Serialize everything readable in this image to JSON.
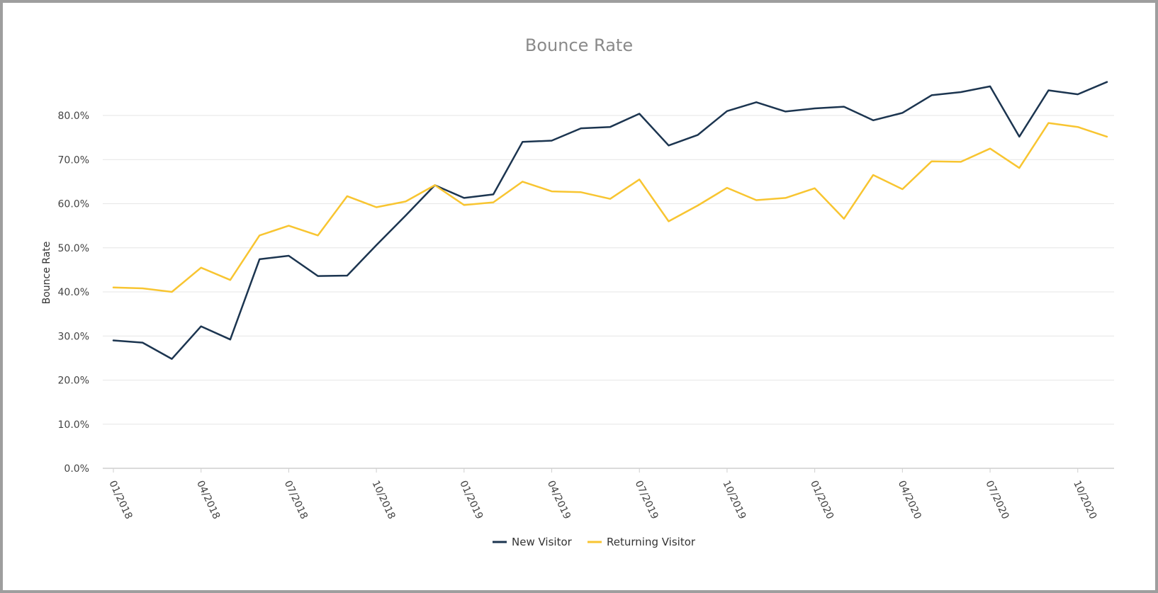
{
  "chart_data": {
    "type": "line",
    "title": "Bounce Rate",
    "xlabel": "",
    "ylabel": "Bounce Rate",
    "ylim": [
      0,
      80
    ],
    "yticks": [
      "0.0%",
      "10.0%",
      "20.0%",
      "30.0%",
      "40.0%",
      "50.0%",
      "60.0%",
      "70.0%",
      "80.0%"
    ],
    "x": [
      "01/2018",
      "02/2018",
      "03/2018",
      "04/2018",
      "05/2018",
      "06/2018",
      "07/2018",
      "08/2018",
      "09/2018",
      "10/2018",
      "11/2018",
      "12/2018",
      "01/2019",
      "02/2019",
      "03/2019",
      "04/2019",
      "05/2019",
      "06/2019",
      "07/2019",
      "08/2019",
      "09/2019",
      "10/2019",
      "11/2019",
      "12/2019",
      "01/2020",
      "02/2020",
      "03/2020",
      "04/2020",
      "05/2020",
      "06/2020",
      "07/2020",
      "08/2020",
      "09/2020",
      "10/2020",
      "11/2020"
    ],
    "xtick_labels": [
      "01/2018",
      "04/2018",
      "07/2018",
      "10/2018",
      "01/2019",
      "04/2019",
      "07/2019",
      "10/2019",
      "01/2020",
      "04/2020",
      "07/2020",
      "10/2020"
    ],
    "grid": true,
    "legend": "bottom-center",
    "series": [
      {
        "name": "New Visitor",
        "color": "#1c3550",
        "values": [
          29.0,
          28.5,
          24.8,
          32.2,
          29.2,
          47.4,
          48.2,
          43.6,
          43.7,
          50.6,
          57.3,
          64.2,
          61.3,
          62.1,
          74.0,
          74.3,
          77.1,
          77.4,
          80.4,
          73.2,
          75.6,
          81.0,
          83.0,
          80.9,
          81.6,
          82.0,
          78.9,
          80.6,
          84.6,
          85.3,
          86.6,
          75.2,
          85.7,
          84.8,
          87.6
        ]
      },
      {
        "name": "Returning Visitor",
        "color": "#f8c531",
        "values": [
          41.0,
          40.8,
          40.0,
          45.5,
          42.7,
          52.8,
          55.0,
          52.8,
          61.7,
          59.2,
          60.5,
          64.2,
          59.7,
          60.3,
          65.0,
          62.8,
          62.6,
          61.1,
          65.5,
          56.0,
          59.6,
          63.6,
          60.8,
          61.3,
          63.5,
          56.6,
          66.5,
          63.3,
          69.6,
          69.5,
          72.5,
          68.1,
          78.3,
          77.4,
          75.2
        ]
      }
    ]
  }
}
